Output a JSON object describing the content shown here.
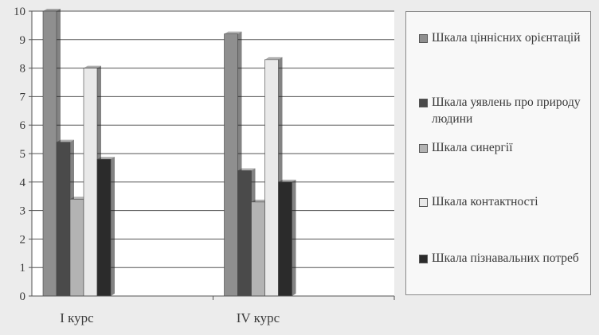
{
  "chart_data": {
    "type": "bar",
    "categories": [
      "І курс",
      "IV курс"
    ],
    "series": [
      {
        "name": "Шкала ціннісних орієнтацій",
        "values": [
          10,
          9.2
        ],
        "color": "#8f8f8f"
      },
      {
        "name": "Шкала уявлень про природу людини",
        "values": [
          5.4,
          4.4
        ],
        "color": "#4a4a4a"
      },
      {
        "name": "Шкала синергії",
        "values": [
          3.4,
          3.3
        ],
        "color": "#b3b3b3"
      },
      {
        "name": "Шкала контактності",
        "values": [
          8.0,
          8.3
        ],
        "color": "#e9e9e9"
      },
      {
        "name": "Шкала пізнавальних потреб",
        "values": [
          4.8,
          4.0
        ],
        "color": "#2b2b2b"
      }
    ],
    "y_ticks": [
      "0",
      "1",
      "2",
      "3",
      "4",
      "5",
      "6",
      "7",
      "8",
      "9",
      "10"
    ],
    "ylim": [
      0,
      10
    ],
    "grid": true,
    "legend_position": "right"
  }
}
